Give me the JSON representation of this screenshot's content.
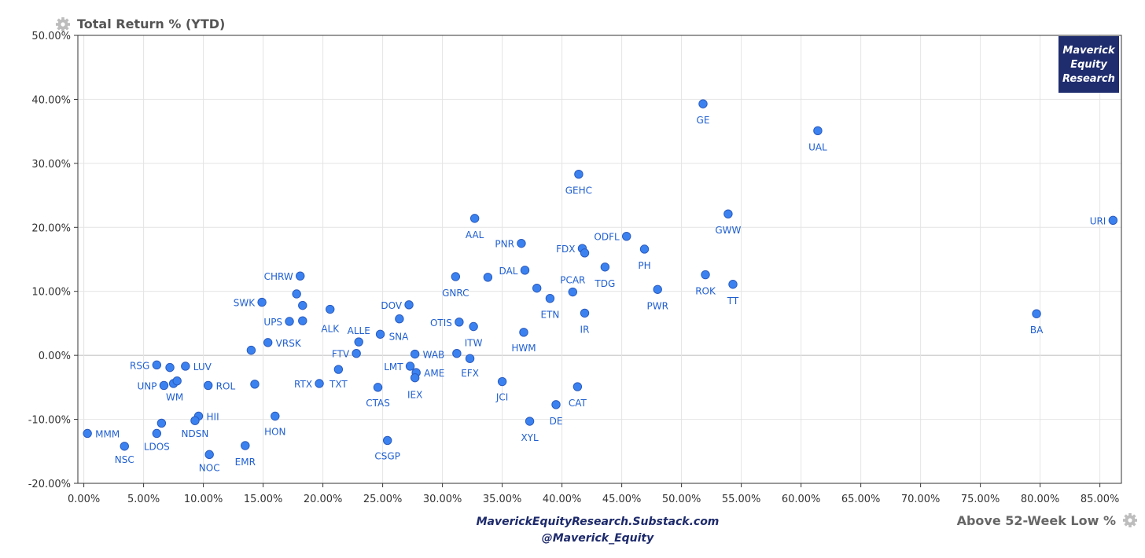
{
  "chart_data": {
    "type": "scatter",
    "title": "Total Return % (YTD)",
    "xlabel": "Above 52-Week Low %",
    "ylabel": "",
    "xlim": [
      -0.5,
      86.8
    ],
    "ylim": [
      -20,
      50
    ],
    "x_ticks": [
      0,
      5,
      10,
      15,
      20,
      25,
      30,
      35,
      40,
      45,
      50,
      55,
      60,
      65,
      70,
      75,
      80,
      85
    ],
    "y_ticks": [
      -20,
      -10,
      0,
      10,
      20,
      30,
      40,
      50
    ],
    "tick_format": "percent_2dp",
    "grid": true,
    "point_color": "#3b82f0",
    "label_color": "#1f5fd1",
    "points": [
      {
        "x": 0.3,
        "y": -12.2,
        "label": "MMM"
      },
      {
        "x": 3.4,
        "y": -14.2,
        "label": "NSC"
      },
      {
        "x": 6.1,
        "y": -12.2,
        "label": "LDOS"
      },
      {
        "x": 6.5,
        "y": -10.6,
        "label": ""
      },
      {
        "x": 6.1,
        "y": -1.5,
        "label": "RSG"
      },
      {
        "x": 7.2,
        "y": -1.9,
        "label": ""
      },
      {
        "x": 8.5,
        "y": -1.7,
        "label": "LUV"
      },
      {
        "x": 6.7,
        "y": -4.7,
        "label": "UNP"
      },
      {
        "x": 7.5,
        "y": -4.4,
        "label": ""
      },
      {
        "x": 7.8,
        "y": -4.0,
        "label": "WM"
      },
      {
        "x": 10.4,
        "y": -4.7,
        "label": "ROL"
      },
      {
        "x": 9.6,
        "y": -9.5,
        "label": "HII"
      },
      {
        "x": 9.3,
        "y": -10.2,
        "label": "NDSN"
      },
      {
        "x": 10.5,
        "y": -15.5,
        "label": "NOC"
      },
      {
        "x": 13.5,
        "y": -14.1,
        "label": "EMR"
      },
      {
        "x": 14.0,
        "y": 0.8,
        "label": ""
      },
      {
        "x": 14.3,
        "y": -4.5,
        "label": ""
      },
      {
        "x": 16.0,
        "y": -9.5,
        "label": "HON"
      },
      {
        "x": 14.9,
        "y": 8.3,
        "label": "SWK"
      },
      {
        "x": 15.4,
        "y": 2.0,
        "label": "VRSK"
      },
      {
        "x": 17.2,
        "y": 5.3,
        "label": "UPS"
      },
      {
        "x": 17.8,
        "y": 9.6,
        "label": ""
      },
      {
        "x": 18.1,
        "y": 12.4,
        "label": "CHRW"
      },
      {
        "x": 18.3,
        "y": 7.8,
        "label": ""
      },
      {
        "x": 18.3,
        "y": 5.4,
        "label": ""
      },
      {
        "x": 19.7,
        "y": -4.4,
        "label": "RTX"
      },
      {
        "x": 20.6,
        "y": 7.2,
        "label": "ALK"
      },
      {
        "x": 21.3,
        "y": -2.2,
        "label": "TXT"
      },
      {
        "x": 22.8,
        "y": 0.3,
        "label": "FTV"
      },
      {
        "x": 23.0,
        "y": 2.1,
        "label": "ALLE"
      },
      {
        "x": 24.6,
        "y": -5.0,
        "label": "CTAS"
      },
      {
        "x": 24.8,
        "y": 3.3,
        "label": "SNA"
      },
      {
        "x": 25.4,
        "y": -13.3,
        "label": "CSGP"
      },
      {
        "x": 26.4,
        "y": 5.7,
        "label": ""
      },
      {
        "x": 27.2,
        "y": 7.9,
        "label": "DOV"
      },
      {
        "x": 27.3,
        "y": -1.7,
        "label": "LMT"
      },
      {
        "x": 27.7,
        "y": 0.2,
        "label": "WAB"
      },
      {
        "x": 27.8,
        "y": -2.7,
        "label": "AME"
      },
      {
        "x": 27.7,
        "y": -3.5,
        "label": "IEX"
      },
      {
        "x": 31.1,
        "y": 12.3,
        "label": "GNRC"
      },
      {
        "x": 31.2,
        "y": 0.3,
        "label": ""
      },
      {
        "x": 31.4,
        "y": 5.2,
        "label": "OTIS"
      },
      {
        "x": 32.3,
        "y": -0.5,
        "label": "EFX"
      },
      {
        "x": 32.6,
        "y": 4.5,
        "label": "ITW"
      },
      {
        "x": 32.7,
        "y": 21.4,
        "label": "AAL"
      },
      {
        "x": 33.8,
        "y": 12.2,
        "label": ""
      },
      {
        "x": 35.0,
        "y": -4.1,
        "label": "JCI"
      },
      {
        "x": 36.6,
        "y": 17.5,
        "label": "PNR"
      },
      {
        "x": 36.9,
        "y": 13.3,
        "label": "DAL"
      },
      {
        "x": 36.8,
        "y": 3.6,
        "label": "HWM"
      },
      {
        "x": 37.3,
        "y": -10.3,
        "label": "XYL"
      },
      {
        "x": 37.9,
        "y": 10.5,
        "label": ""
      },
      {
        "x": 39.0,
        "y": 8.9,
        "label": "ETN"
      },
      {
        "x": 39.5,
        "y": -7.7,
        "label": "DE"
      },
      {
        "x": 40.9,
        "y": 9.9,
        "label": "PCAR"
      },
      {
        "x": 41.3,
        "y": -4.9,
        "label": "CAT"
      },
      {
        "x": 41.4,
        "y": 28.3,
        "label": "GEHC"
      },
      {
        "x": 41.7,
        "y": 16.7,
        "label": "FDX"
      },
      {
        "x": 41.9,
        "y": 16.0,
        "label": ""
      },
      {
        "x": 41.9,
        "y": 6.6,
        "label": "IR"
      },
      {
        "x": 43.6,
        "y": 13.8,
        "label": "TDG"
      },
      {
        "x": 45.4,
        "y": 18.6,
        "label": "ODFL"
      },
      {
        "x": 46.9,
        "y": 16.6,
        "label": "PH"
      },
      {
        "x": 48.0,
        "y": 10.3,
        "label": "PWR"
      },
      {
        "x": 51.8,
        "y": 39.3,
        "label": "GE"
      },
      {
        "x": 52.0,
        "y": 12.6,
        "label": "ROK"
      },
      {
        "x": 53.9,
        "y": 22.1,
        "label": "GWW"
      },
      {
        "x": 54.3,
        "y": 11.1,
        "label": "TT"
      },
      {
        "x": 61.4,
        "y": 35.1,
        "label": "UAL"
      },
      {
        "x": 79.7,
        "y": 6.5,
        "label": "BA"
      },
      {
        "x": 86.1,
        "y": 21.1,
        "label": "URI"
      }
    ]
  },
  "branding": {
    "badge_lines": [
      "Maverick",
      "Equity",
      "Research"
    ],
    "badge_color": "#1f2d6e",
    "website": "MaverickEquityResearch.Substack.com",
    "handle": "@Maverick_Equity"
  },
  "icons": {
    "title_icon": "gear-icon",
    "xlabel_icon": "gear-icon"
  }
}
